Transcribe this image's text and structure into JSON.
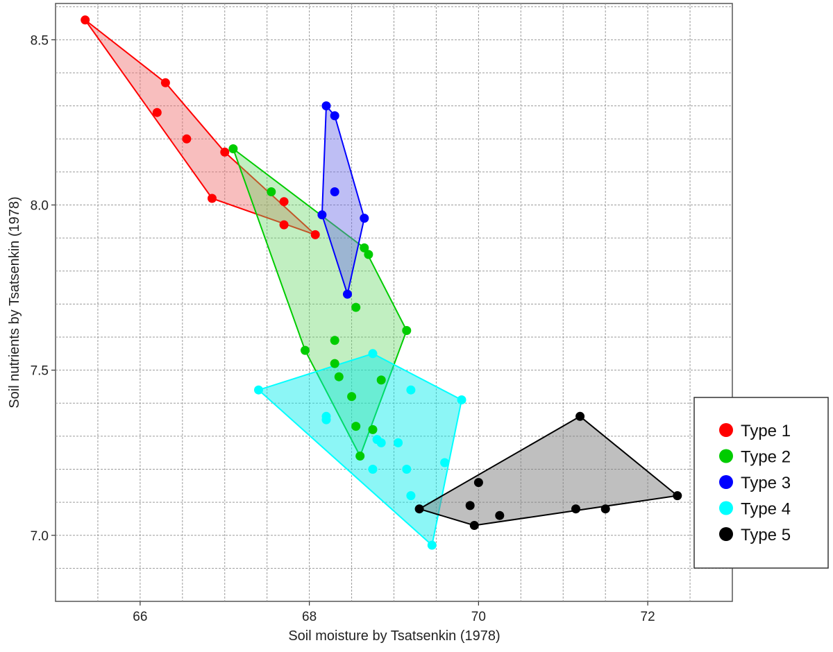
{
  "chart_data": {
    "type": "scatter",
    "title": "",
    "xlabel": "Soil moisture by Tsatsenkin (1978)",
    "ylabel": "Soil nutrients by Tsatsenkin (1978)",
    "xlim": [
      65.0,
      73.0
    ],
    "ylim": [
      6.8,
      8.61
    ],
    "x_ticks": [
      66,
      68,
      70,
      72
    ],
    "x_tick_labels": [
      "66",
      "68",
      "70",
      "72"
    ],
    "y_ticks": [
      7.0,
      7.5,
      8.0,
      8.5
    ],
    "y_tick_labels": [
      "7.0",
      "7.5",
      "8.0",
      "8.5"
    ],
    "grid": true,
    "legend_position": "right",
    "hulls": "convex hull drawn around each type",
    "series": [
      {
        "name": "Type 1",
        "color": "#ff0000",
        "fill": "rgba(240,110,110,0.45)",
        "points": [
          [
            65.35,
            8.56
          ],
          [
            66.3,
            8.37
          ],
          [
            66.2,
            8.28
          ],
          [
            66.55,
            8.2
          ],
          [
            67.0,
            8.16
          ],
          [
            66.85,
            8.02
          ],
          [
            67.7,
            8.01
          ],
          [
            67.7,
            7.94
          ],
          [
            68.07,
            7.91
          ]
        ],
        "hull": [
          [
            65.35,
            8.56
          ],
          [
            66.3,
            8.37
          ],
          [
            67.0,
            8.16
          ],
          [
            68.07,
            7.91
          ],
          [
            66.85,
            8.02
          ]
        ]
      },
      {
        "name": "Type 2",
        "color": "#00cc00",
        "fill": "rgba(100,215,100,0.4)",
        "points": [
          [
            67.1,
            8.17
          ],
          [
            67.55,
            8.04
          ],
          [
            68.65,
            7.87
          ],
          [
            68.7,
            7.85
          ],
          [
            68.55,
            7.69
          ],
          [
            69.15,
            7.62
          ],
          [
            67.95,
            7.56
          ],
          [
            68.3,
            7.59
          ],
          [
            68.3,
            7.52
          ],
          [
            68.35,
            7.48
          ],
          [
            68.85,
            7.47
          ],
          [
            68.5,
            7.42
          ],
          [
            68.55,
            7.33
          ],
          [
            68.75,
            7.32
          ],
          [
            68.6,
            7.24
          ]
        ],
        "hull": [
          [
            67.1,
            8.17
          ],
          [
            68.65,
            7.87
          ],
          [
            69.15,
            7.62
          ],
          [
            68.6,
            7.24
          ],
          [
            67.95,
            7.56
          ]
        ]
      },
      {
        "name": "Type 3",
        "color": "#0000ff",
        "fill": "rgba(110,110,230,0.45)",
        "points": [
          [
            68.2,
            8.3
          ],
          [
            68.3,
            8.27
          ],
          [
            68.3,
            8.04
          ],
          [
            68.15,
            7.97
          ],
          [
            68.65,
            7.96
          ],
          [
            68.45,
            7.73
          ]
        ],
        "hull": [
          [
            68.2,
            8.3
          ],
          [
            68.3,
            8.27
          ],
          [
            68.65,
            7.96
          ],
          [
            68.45,
            7.73
          ],
          [
            68.15,
            7.97
          ]
        ]
      },
      {
        "name": "Type 4",
        "color": "#00ffff",
        "fill": "rgba(0,235,235,0.45)",
        "points": [
          [
            68.75,
            7.55
          ],
          [
            67.4,
            7.44
          ],
          [
            69.2,
            7.44
          ],
          [
            69.8,
            7.41
          ],
          [
            68.2,
            7.36
          ],
          [
            68.2,
            7.35
          ],
          [
            68.8,
            7.29
          ],
          [
            68.85,
            7.28
          ],
          [
            69.05,
            7.28
          ],
          [
            69.6,
            7.22
          ],
          [
            68.75,
            7.2
          ],
          [
            69.15,
            7.2
          ],
          [
            69.2,
            7.12
          ],
          [
            69.45,
            6.97
          ]
        ],
        "hull": [
          [
            67.4,
            7.44
          ],
          [
            68.75,
            7.55
          ],
          [
            69.8,
            7.41
          ],
          [
            69.45,
            6.97
          ]
        ]
      },
      {
        "name": "Type 5",
        "color": "#000000",
        "fill": "rgba(128,128,128,0.5)",
        "points": [
          [
            71.2,
            7.36
          ],
          [
            72.35,
            7.12
          ],
          [
            70.0,
            7.16
          ],
          [
            69.9,
            7.09
          ],
          [
            69.3,
            7.08
          ],
          [
            70.25,
            7.06
          ],
          [
            71.15,
            7.08
          ],
          [
            71.5,
            7.08
          ],
          [
            69.95,
            7.03
          ]
        ],
        "hull": [
          [
            69.3,
            7.08
          ],
          [
            71.2,
            7.36
          ],
          [
            72.35,
            7.12
          ],
          [
            69.95,
            7.03
          ]
        ]
      }
    ]
  }
}
